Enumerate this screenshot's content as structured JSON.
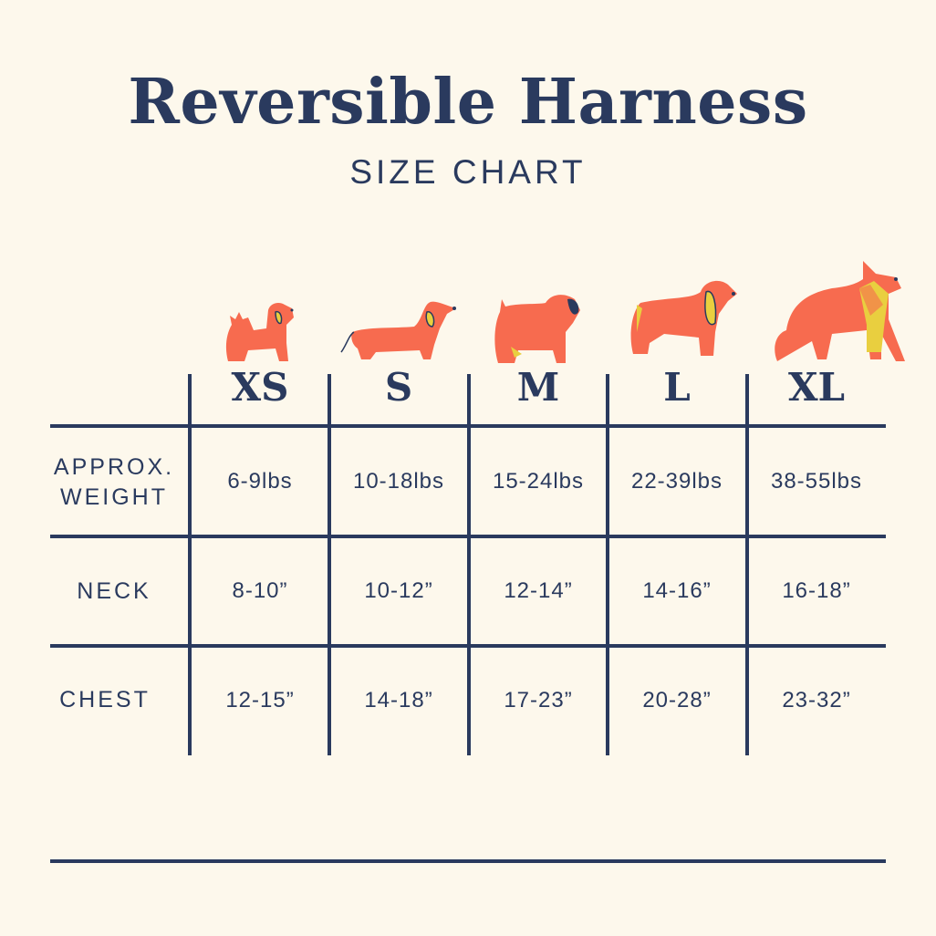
{
  "title": "Reversible Harness",
  "subtitle": "SIZE CHART",
  "colors": {
    "background": "#fdf8ec",
    "navy": "#2a3a5e",
    "dog_orange": "#f76b4f",
    "dog_yellow": "#e9cf3f"
  },
  "sizes": [
    {
      "label": "XS",
      "icon": "small-fluffy-dog-icon"
    },
    {
      "label": "S",
      "icon": "dachshund-icon"
    },
    {
      "label": "M",
      "icon": "pug-icon"
    },
    {
      "label": "L",
      "icon": "spaniel-icon"
    },
    {
      "label": "XL",
      "icon": "collie-icon"
    }
  ],
  "rows": [
    {
      "label_line1": "APPROX.",
      "label_line2": "WEIGHT",
      "values": [
        "6-9lbs",
        "10-18lbs",
        "15-24lbs",
        "22-39lbs",
        "38-55lbs"
      ]
    },
    {
      "label_line1": "NECK",
      "values": [
        "8-10”",
        "10-12”",
        "12-14”",
        "14-16”",
        "16-18”"
      ]
    },
    {
      "label_line1": "CHEST",
      "values": [
        "12-15”",
        "14-18”",
        "17-23”",
        "20-28”",
        "23-32”"
      ]
    }
  ]
}
